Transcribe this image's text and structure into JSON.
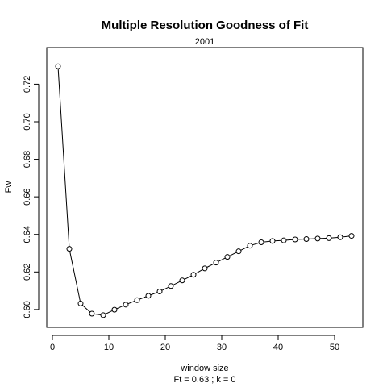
{
  "chart_data": {
    "type": "line",
    "title": "Multiple Resolution Goodness of Fit",
    "subtitle": "2001",
    "xlabel": "window size",
    "ylabel": "Fw",
    "note": "Ft = 0.63 ; k =  0",
    "xlim": [
      -1,
      55
    ],
    "ylim": [
      0.5905,
      0.7395
    ],
    "x_ticks": [
      0,
      10,
      20,
      30,
      40,
      50
    ],
    "y_ticks": [
      0.6,
      0.62,
      0.64,
      0.66,
      0.68,
      0.7,
      0.72
    ],
    "grid": false,
    "series": [
      {
        "markers": "open-circle",
        "x": [
          1,
          3,
          5,
          7,
          9,
          11,
          13,
          15,
          17,
          19,
          21,
          23,
          25,
          27,
          29,
          31,
          33,
          35,
          37,
          39,
          41,
          43,
          45,
          47,
          49,
          51,
          53
        ],
        "y": [
          0.7295,
          0.6323,
          0.6032,
          0.5978,
          0.597,
          0.5999,
          0.6026,
          0.605,
          0.6073,
          0.6096,
          0.6125,
          0.6155,
          0.6185,
          0.6219,
          0.625,
          0.628,
          0.631,
          0.634,
          0.6358,
          0.6365,
          0.6368,
          0.6373,
          0.6375,
          0.6378,
          0.638,
          0.6385,
          0.6392
        ]
      }
    ]
  }
}
